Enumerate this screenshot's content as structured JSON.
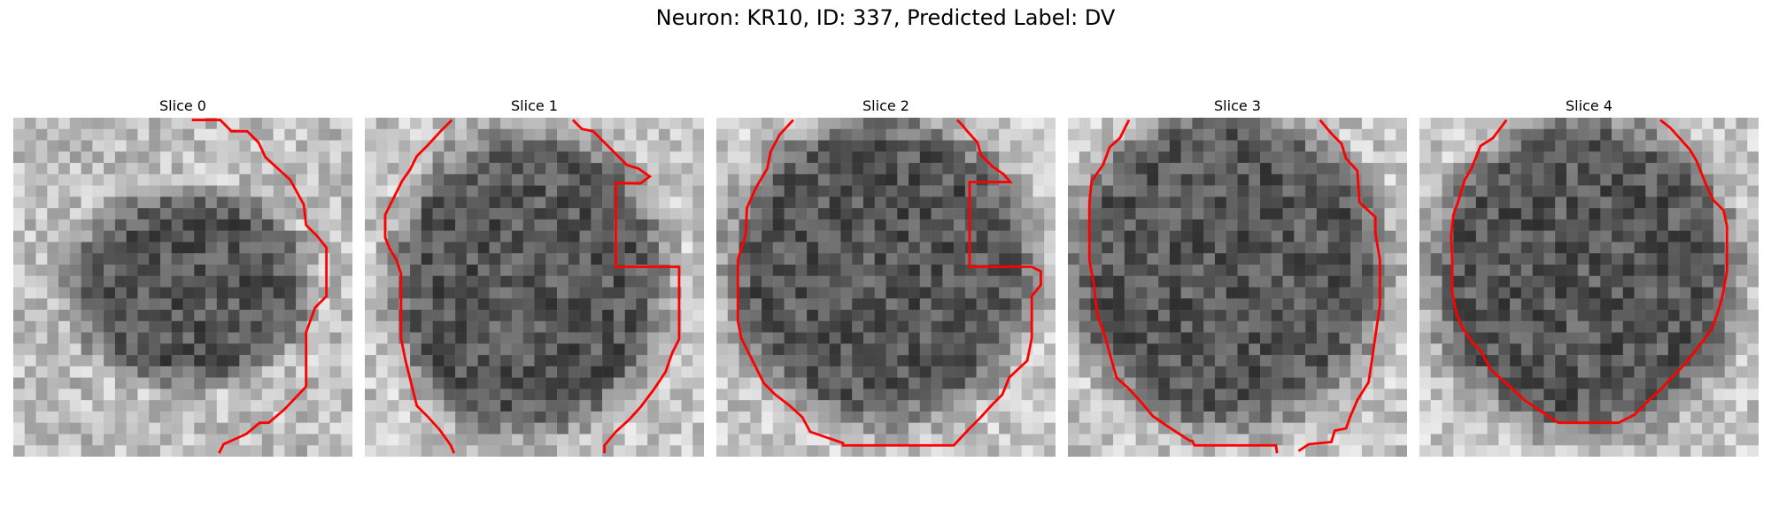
{
  "figure": {
    "title": "Neuron: KR10, ID: 337, Predicted Label: DV"
  },
  "contour_color": "#ff0000",
  "slices": [
    {
      "label": "Slice 0"
    },
    {
      "label": "Slice 1"
    },
    {
      "label": "Slice 2"
    },
    {
      "label": "Slice 3"
    },
    {
      "label": "Slice 4"
    }
  ]
}
